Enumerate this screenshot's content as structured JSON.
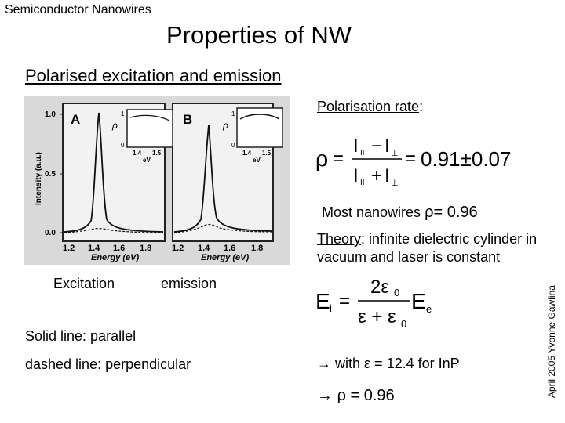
{
  "header": {
    "course": "Semiconductor Nanowires",
    "title": "Properties of NW"
  },
  "section": {
    "heading": "Polarised excitation and emission"
  },
  "polarisation": {
    "label": "Polarisation rate",
    "label_suffix": ":",
    "formula": {
      "rho": "ρ",
      "i_par": "I",
      "i_perp": "I",
      "sub_par": "II",
      "sub_perp": "⊥",
      "minus": "−",
      "plus": "+",
      "equals": "=",
      "result": "0.91±0.07"
    }
  },
  "most_nanowires": {
    "text": "Most nanowires ",
    "rho": "ρ",
    "value": "= 0.96"
  },
  "theory": {
    "label": "Theory",
    "line1": ": infinite dielectric cylinder in",
    "line2": "vacuum and laser is constant"
  },
  "field_formula": {
    "lhs": "E",
    "lhs_sub": "i",
    "equals": "=",
    "numerator": "2ε",
    "num_sub": "0",
    "denominator": "ε + ε",
    "den_sub": "0",
    "rhs": "E",
    "rhs_sub": "e"
  },
  "with_line": {
    "arrow": "→",
    "text": "with ε = 12.4 for InP"
  },
  "rho_result": {
    "arrow": "→",
    "text": "ρ = 0.96"
  },
  "figure": {
    "panel_a": {
      "label": "A",
      "y_axis_label": "Intensity (a.u.)",
      "y_ticks": [
        "1.0",
        "0.5",
        "0.0"
      ],
      "x_ticks": [
        "1.2",
        "1.4",
        "1.6",
        "1.8"
      ],
      "x_axis_label": "Energy (eV)",
      "inset": {
        "y_label": "ρ",
        "y_ticks": [
          "1",
          "0"
        ],
        "x_ticks": [
          "1.4",
          "1.5"
        ],
        "x_label": "eV"
      }
    },
    "panel_b": {
      "label": "B",
      "x_ticks": [
        "1.2",
        "1.4",
        "1.6",
        "1.8"
      ],
      "x_axis_label": "Energy (eV)",
      "inset": {
        "y_label": "ρ",
        "y_ticks": [
          "1",
          "0"
        ],
        "x_ticks": [
          "1.4",
          "1.5"
        ],
        "x_label": "eV"
      }
    }
  },
  "captions": {
    "excitation": "Excitation",
    "emission": "emission",
    "solid": "Solid line: parallel",
    "dashed": "dashed line: perpendicular"
  },
  "credit": "April 2005 Yvonne Gawlina"
}
